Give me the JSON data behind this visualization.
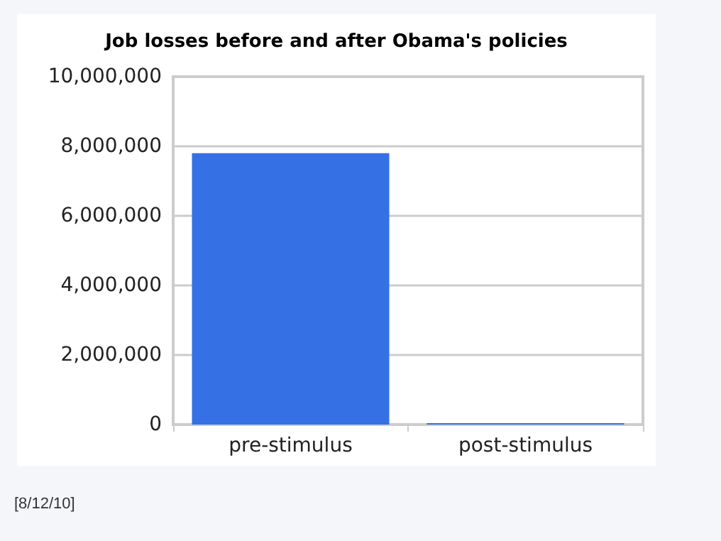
{
  "chart_data": {
    "type": "bar",
    "title": "Job losses before and after Obama's policies",
    "categories": [
      "pre-stimulus",
      "post-stimulus"
    ],
    "values": [
      7800000,
      40000
    ],
    "color": "#3571e5",
    "ylim": [
      0,
      10000000
    ],
    "yticks": [
      0,
      {
        "value": 2000000,
        "label": "2,000,000"
      },
      {
        "value": 4000000,
        "label": "4,000,000"
      },
      {
        "value": 6000000,
        "label": "6,000,000"
      },
      {
        "value": 8000000,
        "label": "8,000,000"
      },
      {
        "value": 10000000,
        "label": "10,000,000"
      }
    ],
    "grid": "y",
    "annotations": [
      "[8/12/10]"
    ]
  }
}
